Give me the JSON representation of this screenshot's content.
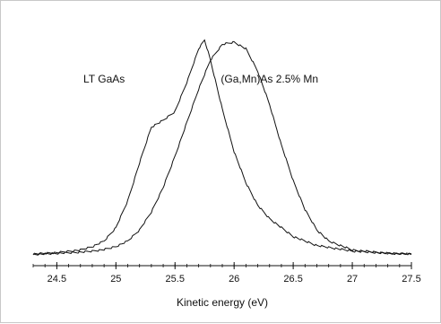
{
  "chart_data": {
    "type": "line",
    "title": "",
    "xlabel": "Kinetic energy (eV)",
    "ylabel": "",
    "xlim": [
      24.3,
      27.5
    ],
    "ylim": [
      0,
      1.0
    ],
    "x_ticks": [
      24.5,
      25,
      25.5,
      26,
      26.5,
      27,
      27.5
    ],
    "x_tick_labels": [
      "24.5",
      "25",
      "25.5",
      "26",
      "26.5",
      "27",
      "27.5"
    ],
    "grid": false,
    "legend": "none",
    "annotations": [
      {
        "text": "LT GaAs",
        "x": 24.9,
        "y": 0.78
      },
      {
        "text": "(Ga,Mn)As 2.5% Mn",
        "x": 26.3,
        "y": 0.78
      }
    ],
    "series": [
      {
        "x": [
          24.3,
          24.5,
          24.7,
          24.8,
          24.9,
          25.0,
          25.1,
          25.2,
          25.3,
          25.4,
          25.5,
          25.6,
          25.7,
          25.75,
          25.8,
          25.9,
          26.0,
          26.1,
          26.2,
          26.3,
          26.5,
          26.7,
          27.0,
          27.3,
          27.5
        ],
        "values": [
          0.012,
          0.018,
          0.03,
          0.045,
          0.07,
          0.13,
          0.25,
          0.42,
          0.58,
          0.61,
          0.65,
          0.78,
          0.93,
          0.97,
          0.88,
          0.66,
          0.47,
          0.33,
          0.23,
          0.17,
          0.09,
          0.05,
          0.025,
          0.015,
          0.012
        ]
      },
      {
        "x": [
          24.3,
          24.5,
          24.7,
          24.8,
          24.9,
          25.0,
          25.1,
          25.2,
          25.3,
          25.4,
          25.5,
          25.6,
          25.7,
          25.8,
          25.9,
          26.0,
          26.1,
          26.2,
          26.3,
          26.4,
          26.5,
          26.6,
          26.7,
          26.8,
          27.0,
          27.3,
          27.5
        ],
        "values": [
          0.01,
          0.015,
          0.02,
          0.025,
          0.032,
          0.045,
          0.07,
          0.12,
          0.2,
          0.31,
          0.45,
          0.6,
          0.75,
          0.88,
          0.95,
          0.96,
          0.93,
          0.83,
          0.68,
          0.5,
          0.34,
          0.21,
          0.12,
          0.07,
          0.03,
          0.015,
          0.012
        ]
      }
    ]
  }
}
